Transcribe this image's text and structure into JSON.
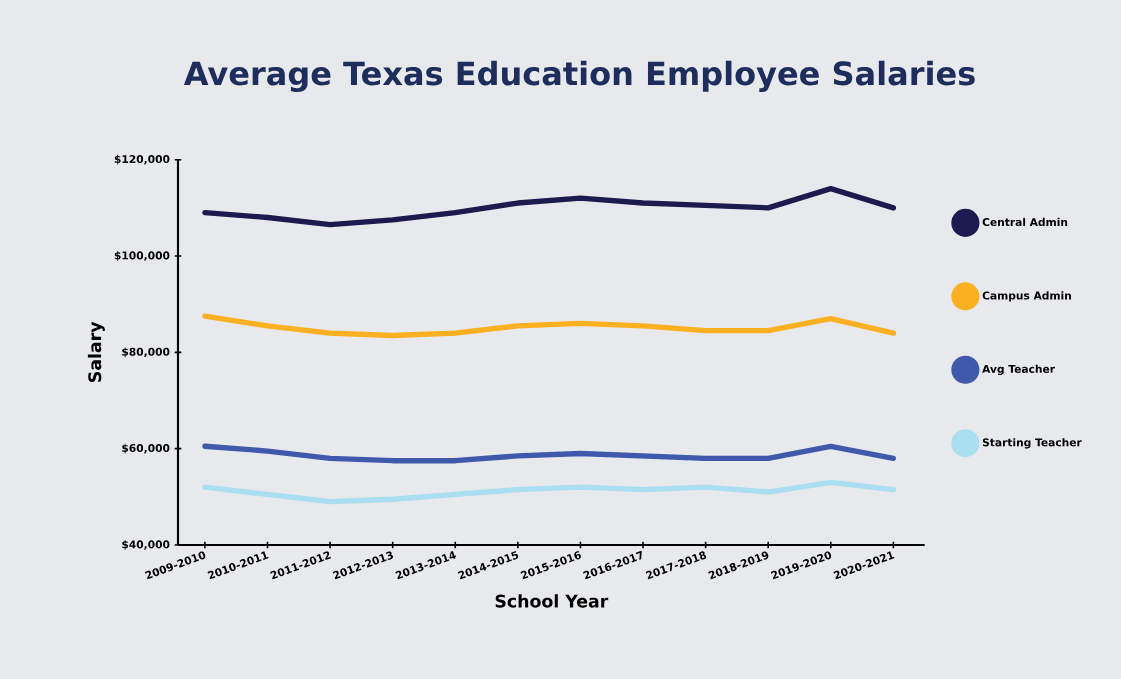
{
  "chart_data": {
    "type": "line",
    "title": "Average Texas Education Employee Salaries",
    "xlabel": "School Year",
    "ylabel": "Salary",
    "categories": [
      "2009-2010",
      "2010-2011",
      "2011-2012",
      "2012-2013",
      "2013-2014",
      "2014-2015",
      "2015-2016",
      "2016-2017",
      "2017-2018",
      "2018-2019",
      "2019-2020",
      "2020-2021"
    ],
    "series": [
      {
        "name": "Central Admin",
        "color": "#1c1a4f",
        "values": [
          109000,
          108000,
          106500,
          107500,
          109000,
          111000,
          112000,
          111000,
          110500,
          110000,
          114000,
          110000
        ]
      },
      {
        "name": "Campus Admin",
        "color": "#fbb022",
        "values": [
          87500,
          85500,
          84000,
          83500,
          84000,
          85500,
          86000,
          85500,
          84500,
          84500,
          87000,
          84000
        ]
      },
      {
        "name": "Avg Teacher",
        "color": "#3f5aab",
        "values": [
          60500,
          59500,
          58000,
          57500,
          57500,
          58500,
          59000,
          58500,
          58000,
          58000,
          60500,
          58000
        ]
      },
      {
        "name": "Starting Teacher",
        "color": "#a9dff0",
        "values": [
          52000,
          50500,
          49000,
          49500,
          50500,
          51500,
          52000,
          51500,
          52000,
          51000,
          53000,
          51500
        ]
      }
    ],
    "ylim": [
      40000,
      120000
    ],
    "yticks": [
      {
        "value": 40000,
        "label": "$40,000"
      },
      {
        "value": 60000,
        "label": "$60,000"
      },
      {
        "value": 80000,
        "label": "$80,000"
      },
      {
        "value": 100000,
        "label": "$100,000"
      },
      {
        "value": 120000,
        "label": "$120,000"
      }
    ],
    "legend": "right"
  }
}
